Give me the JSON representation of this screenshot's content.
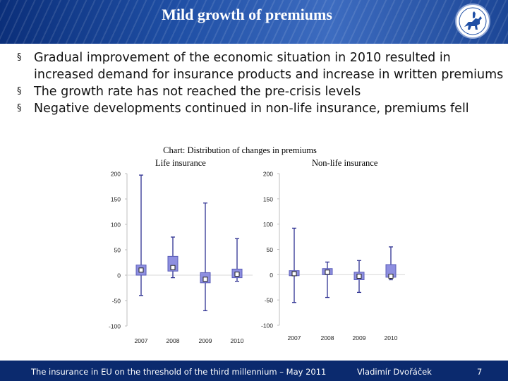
{
  "header": {
    "title": "Mild growth of premiums"
  },
  "bullets": [
    "Gradual improvement of the economic situation in 2010 resulted in increased demand for insurance products and increase in written premiums",
    "The growth rate has not reached the pre-crisis levels",
    "Negative developments continued in non-life insurance, premiums fell"
  ],
  "bullet_marker": "§",
  "chart_data": {
    "type": "box",
    "title": "Chart: Distribution of changes in premiums",
    "panels": [
      {
        "name": "Life insurance",
        "categories": [
          "2007",
          "2008",
          "2009",
          "2010"
        ],
        "yticks": [
          200,
          150,
          100,
          50,
          0,
          -50,
          -100
        ],
        "ylim": [
          -100,
          200
        ],
        "boxes": [
          {
            "whisker_low": -40,
            "q1": 0,
            "q3": 20,
            "median": 10,
            "whisker_high": 197
          },
          {
            "whisker_low": -5,
            "q1": 8,
            "q3": 37,
            "median": 15,
            "whisker_high": 75
          },
          {
            "whisker_low": -70,
            "q1": -15,
            "q3": 5,
            "median": -8,
            "whisker_high": 142
          },
          {
            "whisker_low": -12,
            "q1": -5,
            "q3": 12,
            "median": 2,
            "whisker_high": 72
          }
        ]
      },
      {
        "name": "Non-life insurance",
        "categories": [
          "2007",
          "2008",
          "2009",
          "2010"
        ],
        "yticks": [
          200,
          150,
          100,
          50,
          0,
          -50,
          -100
        ],
        "ylim": [
          -100,
          200
        ],
        "boxes": [
          {
            "whisker_low": -55,
            "q1": -2,
            "q3": 8,
            "median": 2,
            "whisker_high": 92
          },
          {
            "whisker_low": -45,
            "q1": 0,
            "q3": 12,
            "median": 5,
            "whisker_high": 25
          },
          {
            "whisker_low": -35,
            "q1": -10,
            "q3": 5,
            "median": -3,
            "whisker_high": 28
          },
          {
            "whisker_low": -10,
            "q1": -5,
            "q3": 20,
            "median": -3,
            "whisker_high": 55
          }
        ]
      }
    ]
  },
  "footer": {
    "left": "The insurance in EU on the threshold of the third millennium – May 2011",
    "center": "Vladimír Dvořáček",
    "page": "7"
  },
  "colors": {
    "header": "#1f4fa5",
    "footer": "#0b2a6e",
    "box_fill": "#8e8fe0",
    "box_stroke": "#5a5cb8",
    "whisker": "#2e3192"
  }
}
